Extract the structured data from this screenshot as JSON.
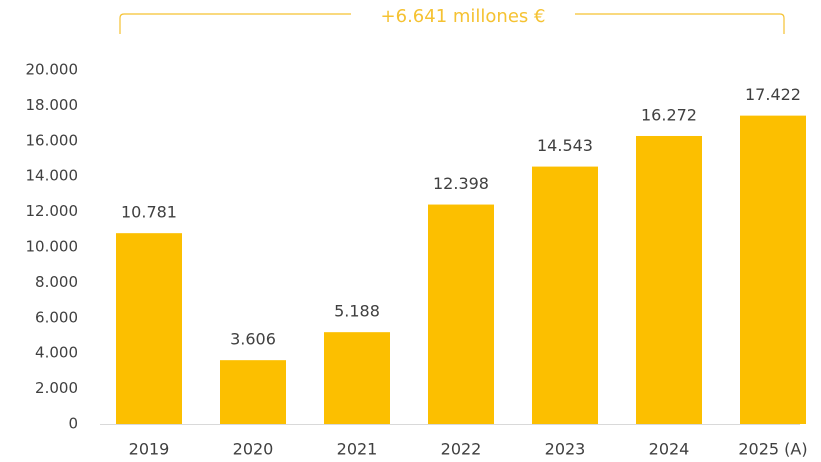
{
  "chart_data": {
    "type": "bar",
    "categories": [
      "2019",
      "2020",
      "2021",
      "2022",
      "2023",
      "2024",
      "2025 (A)"
    ],
    "values": [
      10781,
      3606,
      5188,
      12398,
      14543,
      16272,
      17422
    ],
    "value_labels": [
      "10.781",
      "3.606",
      "5.188",
      "12.398",
      "14.543",
      "16.272",
      "17.422"
    ],
    "title": "",
    "xlabel": "",
    "ylabel": "",
    "ylim": [
      0,
      20000
    ],
    "yticks": [
      0,
      2000,
      4000,
      6000,
      8000,
      10000,
      12000,
      14000,
      16000,
      18000,
      20000
    ],
    "ytick_labels": [
      "0",
      "2.000",
      "4.000",
      "6.000",
      "8.000",
      "10.000",
      "12.000",
      "14.000",
      "16.000",
      "18.000",
      "20.000"
    ],
    "grid": false,
    "legend": "none",
    "annotation": "+6.641 millones €",
    "bar_color": "#FCBF00",
    "annotation_color": "#F5C232"
  }
}
